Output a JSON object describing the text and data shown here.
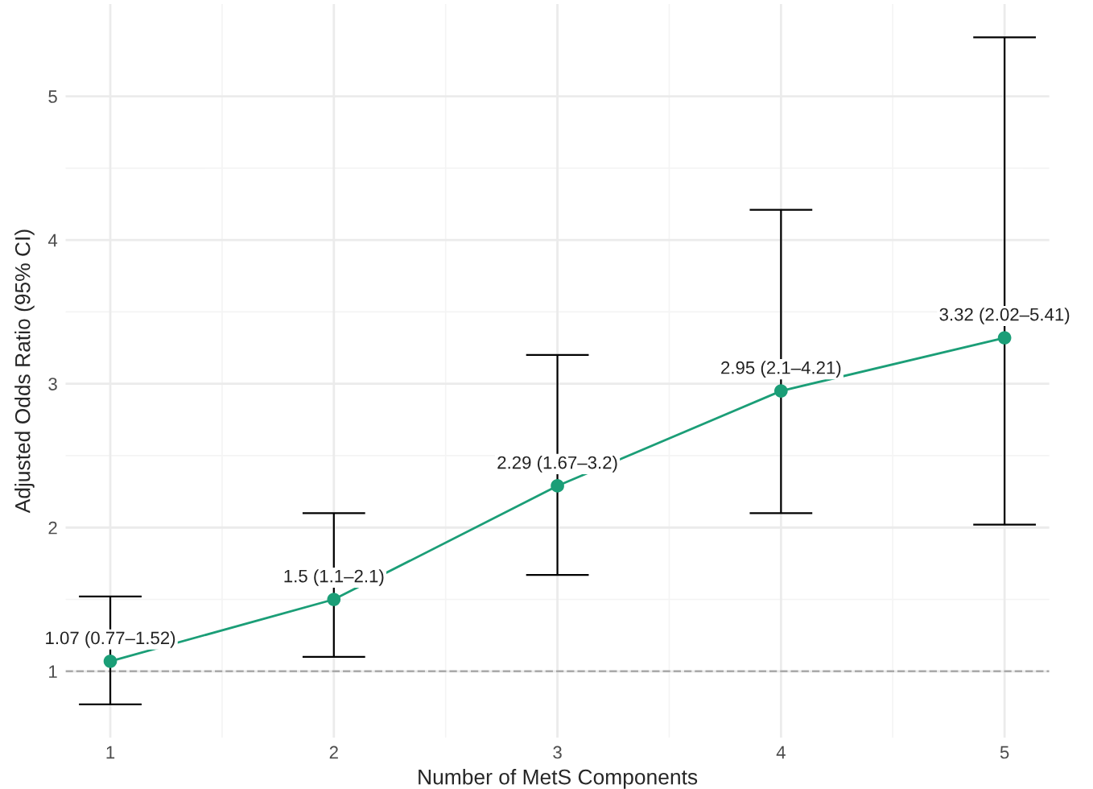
{
  "chart_data": {
    "type": "line",
    "xlabel": "Number of MetS Components",
    "ylabel": "Adjusted Odds Ratio (95% CI)",
    "x": [
      1,
      2,
      3,
      4,
      5
    ],
    "series": [
      {
        "color": "#1b9e77",
        "values": [
          1.07,
          1.5,
          2.29,
          2.95,
          3.32
        ],
        "errors": [
          [
            0.77,
            1.52
          ],
          [
            1.1,
            2.1
          ],
          [
            1.67,
            3.2
          ],
          [
            2.1,
            4.21
          ],
          [
            2.02,
            5.41
          ]
        ],
        "value_labels": [
          "1.07 (0.77–1.52)",
          "1.5 (1.1–2.1)",
          "2.29 (1.67–3.2)",
          "2.95 (2.1–4.21)",
          "3.32 (2.02–5.41)"
        ]
      }
    ],
    "xlim": [
      0.8,
      5.2
    ],
    "ylim": [
      0.538,
      5.642
    ],
    "xticks": [
      1,
      2,
      3,
      4,
      5
    ],
    "yticks": [
      1,
      2,
      3,
      4,
      5
    ],
    "grid": true,
    "marker": "circle",
    "line_style": "solid",
    "ref_lines": [
      {
        "axis": "y",
        "value": 1,
        "color": "#aaaaaa",
        "line_style": "dashed"
      }
    ]
  }
}
